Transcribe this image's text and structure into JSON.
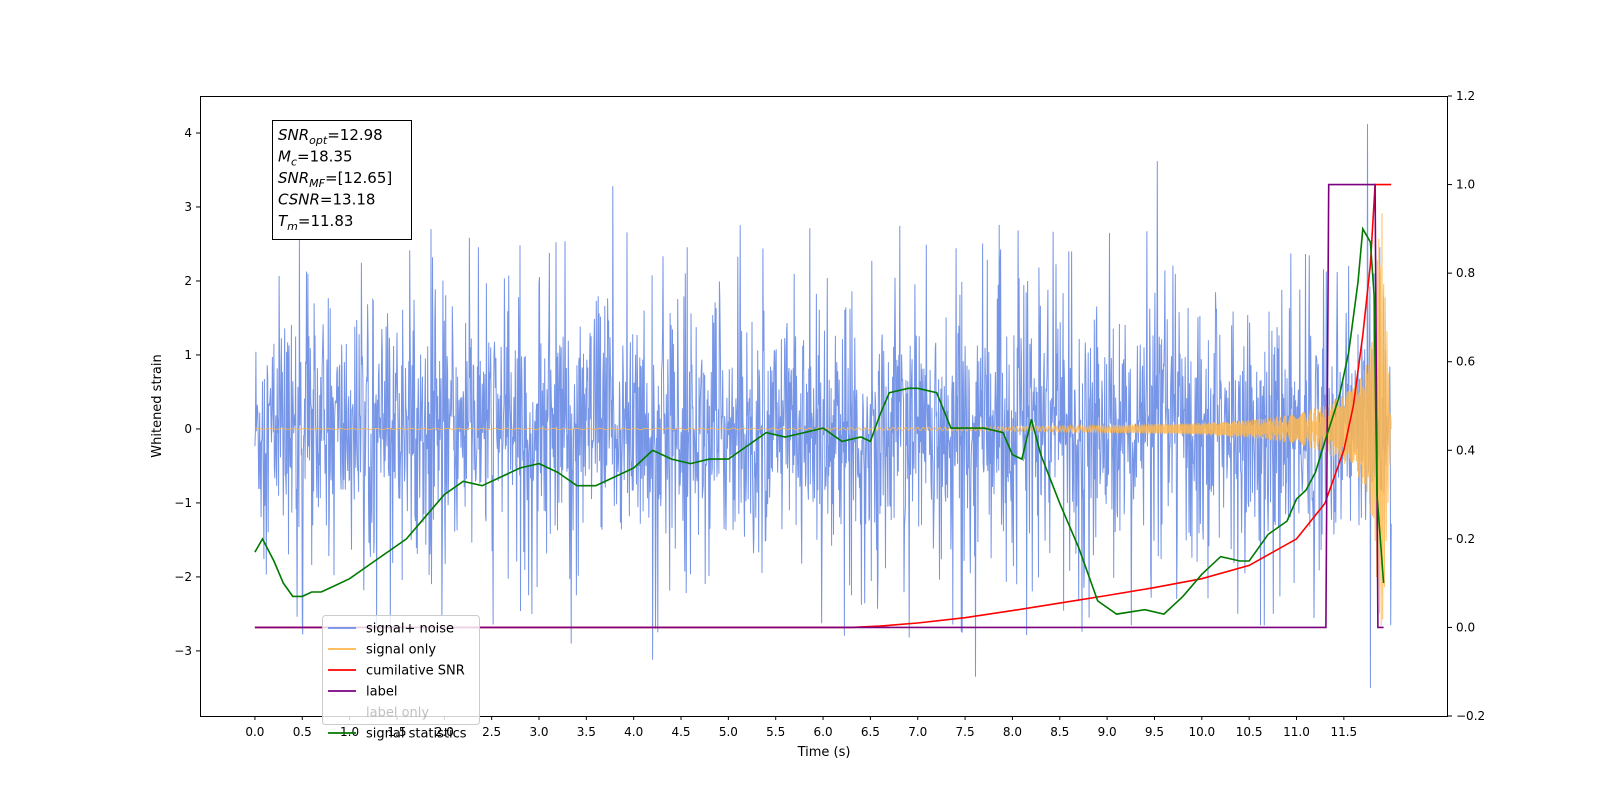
{
  "chart_data": {
    "type": "line",
    "xlabel": "Time (s)",
    "ylabel": "Whitened strain",
    "xlim": [
      -0.58,
      12.6
    ],
    "ylim": [
      -3.88,
      4.5
    ],
    "y2lim": [
      -0.2,
      1.2
    ],
    "x_ticks": [
      "0.0",
      "0.5",
      "1.0",
      "1.5",
      "2.0",
      "2.5",
      "3.0",
      "3.5",
      "4.0",
      "4.5",
      "5.0",
      "5.5",
      "6.0",
      "6.5",
      "7.0",
      "7.5",
      "8.0",
      "8.5",
      "9.0",
      "9.5",
      "10.0",
      "10.5",
      "11.0",
      "11.5"
    ],
    "y_ticks": [
      {
        "value": 4,
        "label": "4"
      },
      {
        "value": 3,
        "label": "3"
      },
      {
        "value": 2,
        "label": "2"
      },
      {
        "value": 1,
        "label": "1"
      },
      {
        "value": 0,
        "label": "0"
      },
      {
        "value": -1,
        "label": "−1"
      },
      {
        "value": -2,
        "label": "−2"
      },
      {
        "value": -3,
        "label": "−3"
      }
    ],
    "y2_ticks": [
      "1.2",
      "1.0",
      "0.8",
      "0.6",
      "0.4",
      "0.2",
      "0.0",
      "−0.2"
    ],
    "grid": false,
    "legend_position": "lower-left",
    "annotation": {
      "lines": [
        {
          "main": "SNR",
          "sub": "opt",
          "value": "=12.98"
        },
        {
          "main": "M",
          "sub": "c",
          "value": "=18.35"
        },
        {
          "main": "SNR",
          "sub": "MF",
          "value": "=[12.65]"
        },
        {
          "main": "CSNR",
          "sub": "",
          "value": "=13.18"
        },
        {
          "main": "T",
          "sub": "m",
          "value": "=11.83"
        }
      ]
    },
    "series": [
      {
        "name": "signal+ noise",
        "axis": "left",
        "color": "#6f8fe6",
        "x_range": [
          0,
          12.0
        ],
        "envelope": {
          "core_sigma": 0.75,
          "typical_peak": 2.3,
          "extremes": [
            {
              "x": 3.78,
              "y": 3.28
            },
            {
              "x": 9.53,
              "y": 3.62
            },
            {
              "x": 11.75,
              "y": 4.12
            },
            {
              "x": 11.78,
              "y": -3.5
            },
            {
              "x": 7.61,
              "y": -3.35
            },
            {
              "x": 4.2,
              "y": -3.12
            }
          ]
        }
      },
      {
        "name": "signal only",
        "axis": "left",
        "color": "#ffb74d",
        "x_range": [
          0,
          12.0
        ],
        "amplitude": [
          [
            0,
            0.005
          ],
          [
            6,
            0.012
          ],
          [
            8,
            0.03
          ],
          [
            9,
            0.05
          ],
          [
            10,
            0.08
          ],
          [
            10.5,
            0.12
          ],
          [
            11,
            0.2
          ],
          [
            11.3,
            0.32
          ],
          [
            11.5,
            0.46
          ],
          [
            11.65,
            0.64
          ],
          [
            11.75,
            0.9
          ],
          [
            11.82,
            1.4
          ],
          [
            11.86,
            2.5
          ],
          [
            11.9,
            3.0
          ],
          [
            12.0,
            0.05
          ]
        ]
      },
      {
        "name": "cumilative SNR",
        "axis": "right",
        "color": "#ff0000",
        "points": [
          [
            0,
            0
          ],
          [
            6.3,
            0
          ],
          [
            6.6,
            0.003
          ],
          [
            7,
            0.01
          ],
          [
            7.5,
            0.022
          ],
          [
            8,
            0.038
          ],
          [
            8.5,
            0.055
          ],
          [
            9,
            0.072
          ],
          [
            9.5,
            0.09
          ],
          [
            10,
            0.11
          ],
          [
            10.5,
            0.14
          ],
          [
            11,
            0.2
          ],
          [
            11.3,
            0.28
          ],
          [
            11.5,
            0.4
          ],
          [
            11.6,
            0.5
          ],
          [
            11.7,
            0.66
          ],
          [
            11.78,
            0.82
          ],
          [
            11.83,
            1.0
          ],
          [
            12.0,
            1.0
          ]
        ]
      },
      {
        "name": "label",
        "axis": "right",
        "color": "#7b0080",
        "points": [
          [
            0,
            0
          ],
          [
            11.31,
            0
          ],
          [
            11.34,
            1.0
          ],
          [
            11.83,
            1.0
          ],
          [
            11.86,
            0
          ],
          [
            11.92,
            0
          ]
        ]
      },
      {
        "name": "label only",
        "axis": "right",
        "color": "#8c6bb1",
        "hidden": true,
        "points": []
      },
      {
        "name": "signal statistics",
        "axis": "right",
        "color": "#007a00",
        "points": [
          [
            0,
            0.17
          ],
          [
            0.08,
            0.2
          ],
          [
            0.2,
            0.15
          ],
          [
            0.3,
            0.1
          ],
          [
            0.4,
            0.07
          ],
          [
            0.5,
            0.07
          ],
          [
            0.6,
            0.08
          ],
          [
            0.7,
            0.08
          ],
          [
            0.8,
            0.09
          ],
          [
            1,
            0.11
          ],
          [
            1.2,
            0.14
          ],
          [
            1.4,
            0.17
          ],
          [
            1.6,
            0.2
          ],
          [
            1.8,
            0.25
          ],
          [
            2,
            0.3
          ],
          [
            2.2,
            0.33
          ],
          [
            2.4,
            0.32
          ],
          [
            2.6,
            0.34
          ],
          [
            2.8,
            0.36
          ],
          [
            3,
            0.37
          ],
          [
            3.2,
            0.35
          ],
          [
            3.4,
            0.32
          ],
          [
            3.6,
            0.32
          ],
          [
            3.8,
            0.34
          ],
          [
            4,
            0.36
          ],
          [
            4.2,
            0.4
          ],
          [
            4.4,
            0.38
          ],
          [
            4.6,
            0.37
          ],
          [
            4.8,
            0.38
          ],
          [
            5,
            0.38
          ],
          [
            5.2,
            0.41
          ],
          [
            5.4,
            0.44
          ],
          [
            5.6,
            0.43
          ],
          [
            5.8,
            0.44
          ],
          [
            6,
            0.45
          ],
          [
            6.2,
            0.42
          ],
          [
            6.4,
            0.43
          ],
          [
            6.5,
            0.42
          ],
          [
            6.6,
            0.48
          ],
          [
            6.7,
            0.53
          ],
          [
            6.9,
            0.54
          ],
          [
            7,
            0.54
          ],
          [
            7.2,
            0.53
          ],
          [
            7.35,
            0.45
          ],
          [
            7.5,
            0.45
          ],
          [
            7.7,
            0.45
          ],
          [
            7.9,
            0.44
          ],
          [
            8,
            0.39
          ],
          [
            8.1,
            0.38
          ],
          [
            8.2,
            0.47
          ],
          [
            8.3,
            0.39
          ],
          [
            8.5,
            0.28
          ],
          [
            8.7,
            0.18
          ],
          [
            8.9,
            0.06
          ],
          [
            9.1,
            0.03
          ],
          [
            9.4,
            0.04
          ],
          [
            9.6,
            0.03
          ],
          [
            9.8,
            0.07
          ],
          [
            10,
            0.12
          ],
          [
            10.2,
            0.16
          ],
          [
            10.4,
            0.15
          ],
          [
            10.5,
            0.15
          ],
          [
            10.7,
            0.21
          ],
          [
            10.9,
            0.24
          ],
          [
            11,
            0.29
          ],
          [
            11.1,
            0.31
          ],
          [
            11.2,
            0.35
          ],
          [
            11.3,
            0.42
          ],
          [
            11.45,
            0.52
          ],
          [
            11.55,
            0.62
          ],
          [
            11.65,
            0.78
          ],
          [
            11.7,
            0.9
          ],
          [
            11.78,
            0.87
          ],
          [
            11.82,
            0.75
          ],
          [
            11.85,
            0.3
          ],
          [
            11.92,
            0.1
          ]
        ]
      }
    ]
  }
}
